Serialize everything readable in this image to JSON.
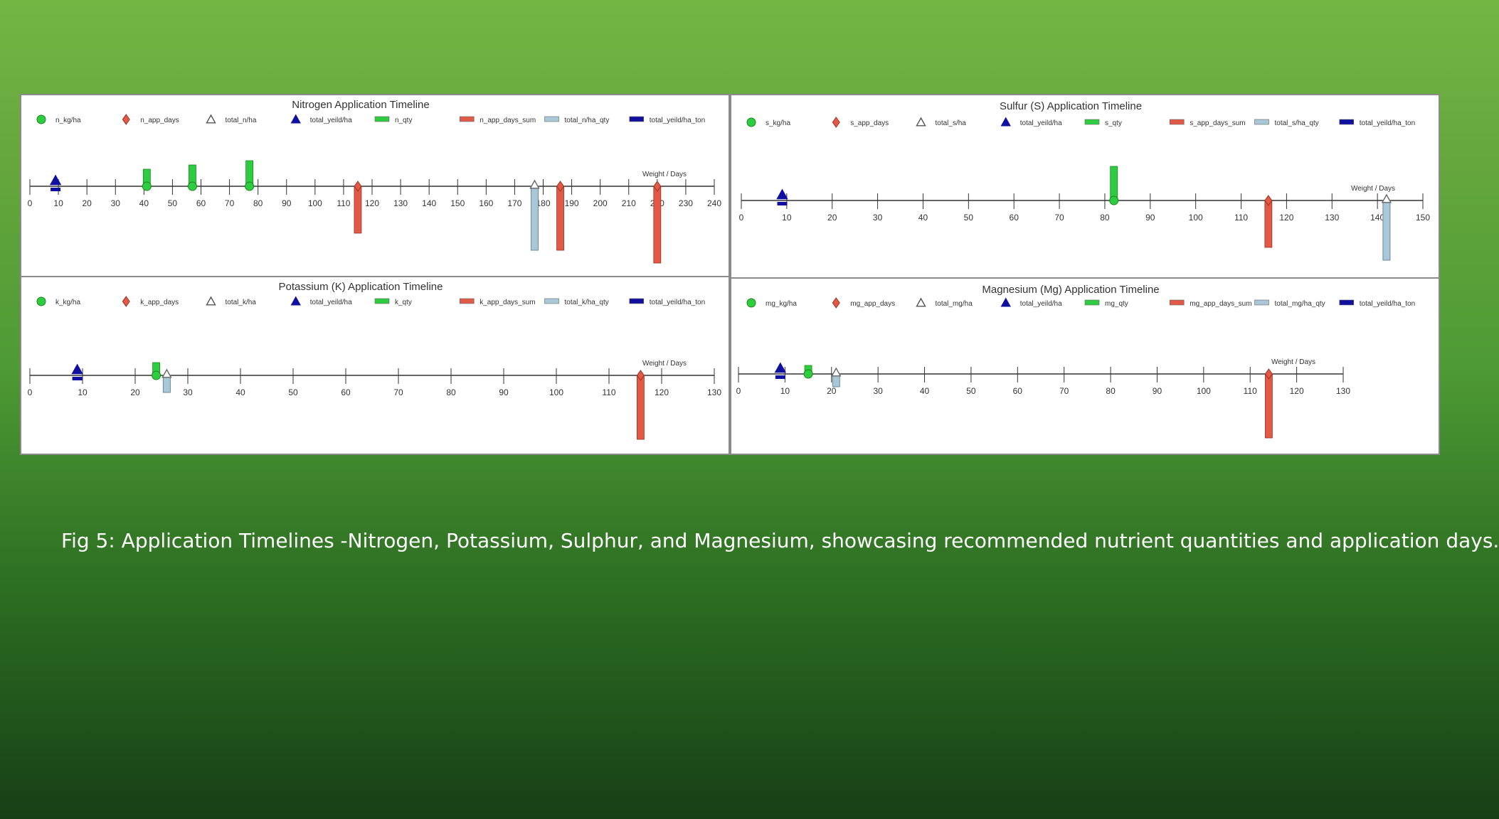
{
  "caption": "Fig 5: Application Timelines -Nitrogen, Potassium, Sulphur, and Magnesium, showcasing recommended nutrient quantities and application days.",
  "colors": {
    "qty_marker": "#2ecc40",
    "app_days_marker": "#e05a47",
    "total_marker": "#a8c8d8",
    "yield_marker": "#1010a0"
  },
  "chart_data": [
    {
      "type": "timeline",
      "title": "Nitrogen Application Timeline",
      "axis_label": "Weight / Days",
      "xlim": [
        0,
        240
      ],
      "ticks": [
        0,
        10,
        20,
        30,
        40,
        50,
        60,
        70,
        80,
        90,
        100,
        110,
        120,
        130,
        140,
        150,
        160,
        170,
        180,
        190,
        200,
        210,
        220,
        230,
        240
      ],
      "legend": [
        "n_kg/ha",
        "n_app_days",
        "total_n/ha",
        "total_yeild/ha",
        "n_qty",
        "n_app_days_sum",
        "total_n/ha_qty",
        "total_yeild/ha_ton"
      ],
      "qty": [
        {
          "x": 41,
          "value": 20
        },
        {
          "x": 57,
          "value": 25
        },
        {
          "x": 77,
          "value": 30
        }
      ],
      "app_days": [
        {
          "x": 115,
          "value": 55
        },
        {
          "x": 186,
          "value": 75
        },
        {
          "x": 220,
          "value": 90
        }
      ],
      "total": [
        {
          "x": 177,
          "value": 75
        }
      ],
      "yield": [
        {
          "x": 9,
          "value": 5
        }
      ]
    },
    {
      "type": "timeline",
      "title": "Sulfur (S) Application Timeline",
      "axis_label": "Weight / Days",
      "xlim": [
        0,
        150
      ],
      "ticks": [
        0,
        10,
        20,
        30,
        40,
        50,
        60,
        70,
        80,
        90,
        100,
        110,
        120,
        130,
        140,
        150
      ],
      "legend": [
        "s_kg/ha",
        "s_app_days",
        "total_s/ha",
        "total_yeild/ha",
        "s_qty",
        "s_app_days_sum",
        "total_s/ha_qty",
        "total_yeild/ha_ton"
      ],
      "qty": [
        {
          "x": 82,
          "value": 40
        }
      ],
      "app_days": [
        {
          "x": 116,
          "value": 55
        }
      ],
      "total": [
        {
          "x": 142,
          "value": 70
        }
      ],
      "yield": [
        {
          "x": 9,
          "value": 5
        }
      ]
    },
    {
      "type": "timeline",
      "title": "Potassium (K) Application Timeline",
      "axis_label": "Weight / Days",
      "xlim": [
        0,
        130
      ],
      "ticks": [
        0,
        10,
        20,
        30,
        40,
        50,
        60,
        70,
        80,
        90,
        100,
        110,
        120,
        130
      ],
      "legend": [
        "k_kg/ha",
        "k_app_days",
        "total_k/ha",
        "total_yeild/ha",
        "k_qty",
        "k_app_days_sum",
        "total_k/ha_qty",
        "total_yeild/ha_ton"
      ],
      "qty": [
        {
          "x": 24,
          "value": 15
        }
      ],
      "app_days": [
        {
          "x": 116,
          "value": 75
        }
      ],
      "total": [
        {
          "x": 26,
          "value": 20
        }
      ],
      "yield": [
        {
          "x": 9,
          "value": 5
        }
      ]
    },
    {
      "type": "timeline",
      "title": "Magnesium (Mg) Application Timeline",
      "axis_label": "Weight / Days",
      "xlim": [
        0,
        130
      ],
      "ticks": [
        0,
        10,
        20,
        30,
        40,
        50,
        60,
        70,
        80,
        90,
        100,
        110,
        120,
        130
      ],
      "legend": [
        "mg_kg/ha",
        "mg_app_days",
        "total_mg/ha",
        "total_yeild/ha",
        "mg_qty",
        "mg_app_days_sum",
        "total_mg/ha_qty",
        "total_yeild/ha_ton"
      ],
      "qty": [
        {
          "x": 15,
          "value": 10
        }
      ],
      "app_days": [
        {
          "x": 114,
          "value": 75
        }
      ],
      "total": [
        {
          "x": 21,
          "value": 15
        }
      ],
      "yield": [
        {
          "x": 9,
          "value": 5
        }
      ]
    }
  ]
}
